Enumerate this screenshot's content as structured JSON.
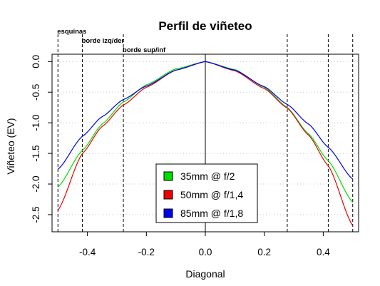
{
  "chart_data": {
    "type": "line",
    "title": "Perfil de viñeteo",
    "xlabel": "Diagonal",
    "ylabel": "Viñeteo (EV)",
    "xlim": [
      -0.52,
      0.52
    ],
    "ylim": [
      -2.78,
      0.12
    ],
    "x_ticks": [
      -0.4,
      -0.2,
      0.0,
      0.2,
      0.4
    ],
    "x_tick_labels": [
      "-0.4",
      "-0.2",
      "0.0",
      "0.2",
      "0.4"
    ],
    "y_ticks": [
      0.0,
      -0.5,
      -1.0,
      -1.5,
      -2.0,
      -2.5
    ],
    "y_tick_labels": [
      "0.0",
      "-0.5",
      "-1.0",
      "-1.5",
      "-2.0",
      "-2.5"
    ],
    "grid": "horizontal dotted",
    "legend_position": "bottom-center",
    "reference_lines": [
      {
        "x": -0.5,
        "label": "esquinas"
      },
      {
        "x": -0.417,
        "label": "borde izq/der"
      },
      {
        "x": -0.278,
        "label": "borde sup/inf"
      },
      {
        "x": 0.278,
        "label": ""
      },
      {
        "x": 0.417,
        "label": ""
      },
      {
        "x": 0.5,
        "label": ""
      }
    ],
    "center_line_x": 0.0,
    "series": [
      {
        "name": "35mm @ f/2",
        "color": "#00dd00",
        "profile": {
          "x": [
            0,
            0.1,
            0.2,
            0.278,
            0.35,
            0.417,
            0.5
          ],
          "left": [
            0,
            -0.12,
            -0.38,
            -0.66,
            -1.02,
            -1.45,
            -2.05
          ],
          "right": [
            0,
            -0.13,
            -0.42,
            -0.75,
            -1.18,
            -1.62,
            -2.3
          ]
        }
      },
      {
        "name": "50mm @ f/1,4",
        "color": "#ee0000",
        "profile": {
          "x": [
            0,
            0.1,
            0.2,
            0.278,
            0.35,
            0.417,
            0.5
          ],
          "left": [
            0,
            -0.14,
            -0.42,
            -0.71,
            -1.06,
            -1.5,
            -2.43
          ],
          "right": [
            0,
            -0.15,
            -0.44,
            -0.76,
            -1.2,
            -1.7,
            -2.68
          ]
        }
      },
      {
        "name": "85mm @ f/1,8",
        "color": "#0000ee",
        "profile": {
          "x": [
            0,
            0.1,
            0.2,
            0.278,
            0.35,
            0.417,
            0.5
          ],
          "left": [
            0,
            -0.14,
            -0.4,
            -0.62,
            -0.9,
            -1.22,
            -1.76
          ],
          "right": [
            0,
            -0.14,
            -0.41,
            -0.7,
            -1.02,
            -1.4,
            -1.92
          ]
        }
      }
    ]
  }
}
